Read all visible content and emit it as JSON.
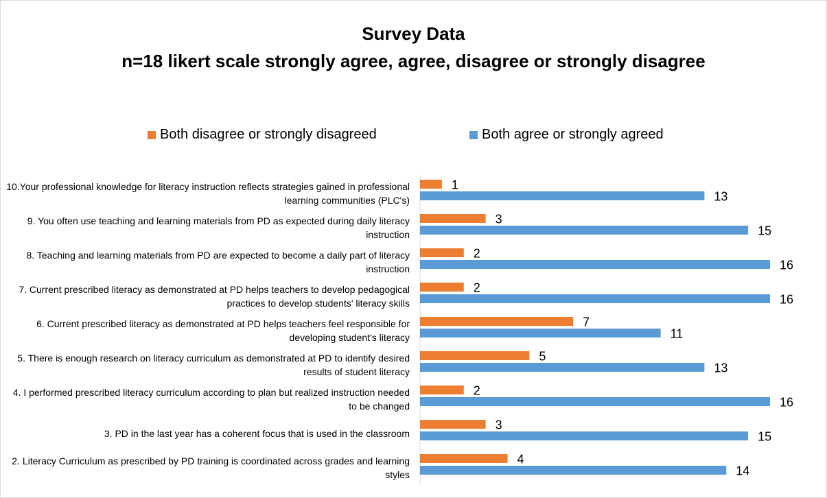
{
  "chart_data": {
    "type": "barh",
    "title": "Survey Data",
    "subtitle": "n=18 likert scale strongly agree, agree, disagree or strongly disagree",
    "categories": [
      "10.Your professional knowledge for literacy instruction reflects strategies gained in professional learning communities (PLC's)",
      "9. You often use teaching and learning materials from PD as expected during daily literacy instruction",
      "8. Teaching and learning materials from PD are expected to become a daily part of literacy instruction",
      "7. Current prescribed literacy as demonstrated at PD helps teachers to develop pedagogical practices to develop students' literacy skills",
      "6. Current prescribed literacy as demonstrated at PD helps teachers feel responsible for developing student's literacy",
      "5. There is enough research on literacy curriculum as demonstrated at PD to identify desired results of student literacy",
      "4. I performed prescribed literacy curriculum according to plan but realized instruction needed to be changed",
      "3. PD in the last year has a coherent focus that is used in the classroom",
      "2. Literacy Curriculum as prescribed by PD training is coordinated across grades and learning styles"
    ],
    "series": [
      {
        "name": "Both disagree or strongly disagreed",
        "color": "#ed7d31",
        "values": [
          1,
          3,
          2,
          2,
          7,
          5,
          2,
          3,
          4
        ]
      },
      {
        "name": "Both agree or strongly agreed",
        "color": "#5b9bd5",
        "values": [
          13,
          15,
          16,
          16,
          11,
          13,
          16,
          15,
          14
        ]
      }
    ],
    "xlim": [
      0,
      16
    ],
    "legend": "top"
  }
}
